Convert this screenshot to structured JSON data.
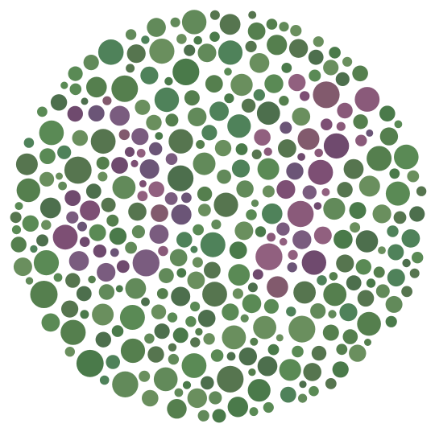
{
  "plate": {
    "palette": {
      "background": "#ffffff",
      "field_greens": [
        "#4a7a4a",
        "#557f4e",
        "#5a8a55",
        "#4d6f4d",
        "#628a5a",
        "#6a8f5e",
        "#56754f",
        "#4f825a"
      ],
      "figure_purples": [
        "#7d4f74",
        "#8a5a7a",
        "#6f4a6e",
        "#7a5c7f",
        "#91607f",
        "#6b5577",
        "#825a6d"
      ]
    },
    "figure_description_visible": false
  }
}
